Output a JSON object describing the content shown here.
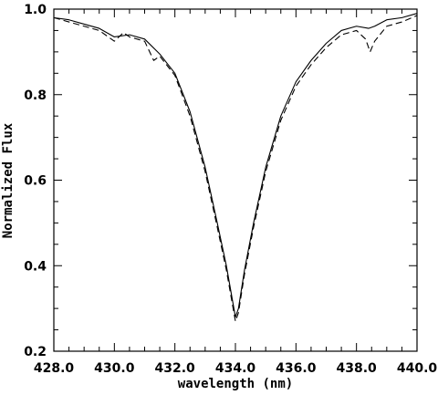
{
  "chart_data": {
    "type": "line",
    "title": "",
    "xlabel": "wavelength  (nm)",
    "ylabel": "Normalized Flux",
    "xlim": [
      428.0,
      440.0
    ],
    "ylim": [
      0.2,
      1.0
    ],
    "x_ticks": [
      "428.0",
      "430.0",
      "432.0",
      "434.0",
      "436.0",
      "438.0",
      "440.0"
    ],
    "y_ticks": [
      "0.2",
      "0.4",
      "0.6",
      "0.8",
      "1.0"
    ],
    "x_minor_step": 0.5,
    "y_minor_step": 0.05,
    "grid": false,
    "series": [
      {
        "style": "solid",
        "x": [
          428.0,
          428.5,
          429.0,
          429.5,
          430.0,
          430.5,
          431.0,
          431.5,
          432.0,
          432.5,
          433.0,
          433.4,
          433.7,
          433.9,
          434.0,
          434.1,
          434.3,
          434.6,
          435.0,
          435.5,
          436.0,
          436.5,
          437.0,
          437.5,
          438.0,
          438.4,
          438.6,
          439.0,
          439.5,
          440.0
        ],
        "y": [
          0.98,
          0.975,
          0.965,
          0.955,
          0.935,
          0.94,
          0.93,
          0.895,
          0.85,
          0.76,
          0.63,
          0.5,
          0.4,
          0.32,
          0.28,
          0.3,
          0.39,
          0.5,
          0.63,
          0.75,
          0.83,
          0.88,
          0.92,
          0.95,
          0.96,
          0.955,
          0.96,
          0.975,
          0.98,
          0.99
        ]
      },
      {
        "style": "dashed",
        "x": [
          428.0,
          428.5,
          429.0,
          429.5,
          430.0,
          430.3,
          430.5,
          431.0,
          431.3,
          431.5,
          432.0,
          432.5,
          433.0,
          433.4,
          433.7,
          433.9,
          434.0,
          434.1,
          434.3,
          434.6,
          435.0,
          435.5,
          436.0,
          436.5,
          437.0,
          437.5,
          438.0,
          438.3,
          438.45,
          438.6,
          439.0,
          439.5,
          440.0
        ],
        "y": [
          0.98,
          0.97,
          0.96,
          0.95,
          0.925,
          0.945,
          0.935,
          0.925,
          0.88,
          0.89,
          0.845,
          0.75,
          0.62,
          0.49,
          0.39,
          0.31,
          0.27,
          0.29,
          0.38,
          0.49,
          0.62,
          0.74,
          0.82,
          0.87,
          0.91,
          0.94,
          0.95,
          0.93,
          0.9,
          0.925,
          0.96,
          0.97,
          0.985
        ]
      }
    ]
  }
}
